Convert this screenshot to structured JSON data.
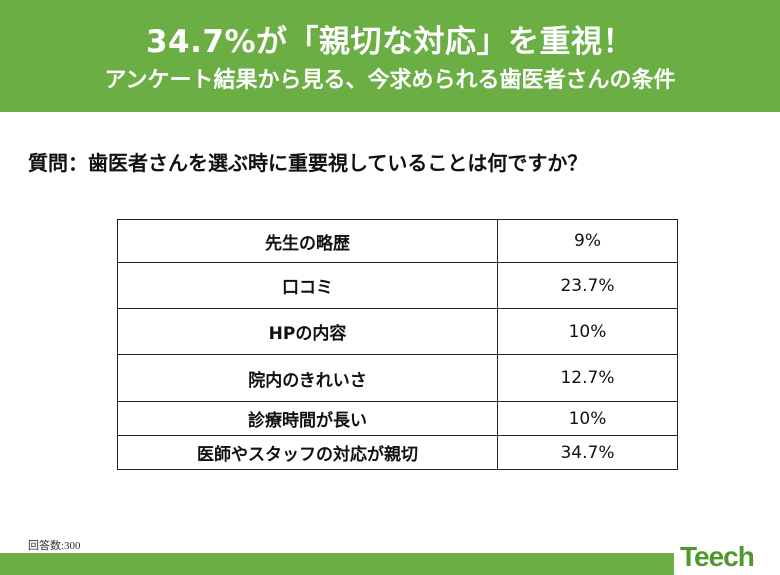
{
  "header": {
    "title": "34.7%が「親切な対応」を重視！",
    "subtitle": "アンケート結果から見る、今求められる歯医者さんの条件"
  },
  "question": "質問：歯医者さんを選ぶ時に重要視していることは何ですか？",
  "table": {
    "rows": [
      {
        "label": "先生の略歴",
        "value": "9%"
      },
      {
        "label": "口コミ",
        "value": "23.7%"
      },
      {
        "label": "HPの内容",
        "value": "10%"
      },
      {
        "label": "院内のきれいさ",
        "value": "12.7%"
      },
      {
        "label": "診療時間が長い",
        "value": "10%"
      },
      {
        "label": "医師やスタッフの対応が親切",
        "value": "34.7%"
      }
    ]
  },
  "footnote": "回答数:300",
  "logo": {
    "text": "Teech"
  },
  "colors": {
    "brand_green": "#6aae44",
    "logo_green": "#4c9a2a"
  }
}
